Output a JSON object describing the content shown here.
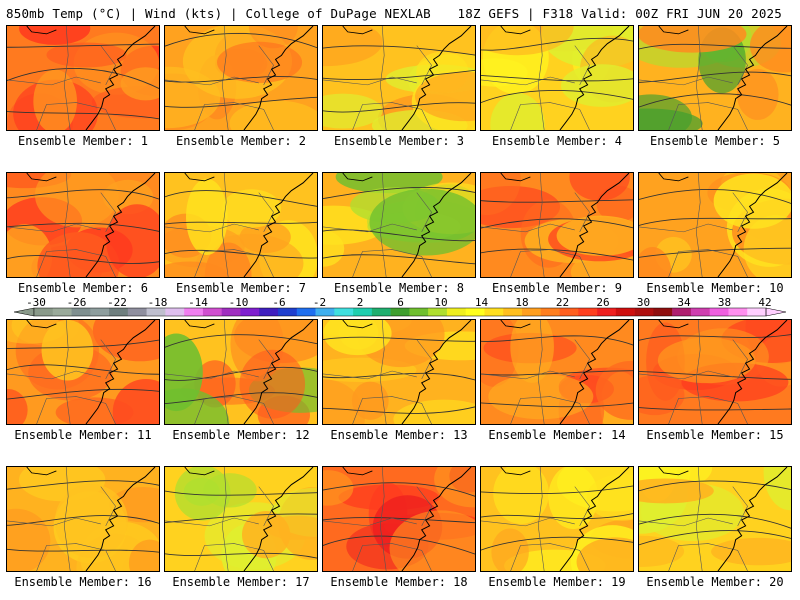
{
  "header": {
    "left_title": "850mb Temp (°C) | Wind (kts) | College of DuPage NEXLAB",
    "right_title": "18Z GEFS | F318 Valid: 00Z FRI JUN 20 2025"
  },
  "colorbar": {
    "tick_labels": [
      "-30",
      "-26",
      "-22",
      "-18",
      "-14",
      "-10",
      "-6",
      "-2",
      "2",
      "6",
      "10",
      "14",
      "18",
      "22",
      "26",
      "30",
      "34",
      "38",
      "42"
    ],
    "colors": [
      "#8a9a8a",
      "#9aaa9a",
      "#7f8f8f",
      "#8e9e9e",
      "#6f7f7f",
      "#8f8f9f",
      "#bfbfcf",
      "#dfbfef",
      "#f07ff0",
      "#d04fd0",
      "#a02fc0",
      "#7f1fcf",
      "#3f1fbf",
      "#1f3fcf",
      "#1f6fef",
      "#3fafef",
      "#3fdfdf",
      "#1fcfaf",
      "#1faf6f",
      "#3f9f2f",
      "#6fbf2f",
      "#afdf2f",
      "#efef1f",
      "#ffff1f",
      "#ffdf1f",
      "#ffbf1f",
      "#ff9f1f",
      "#ff7f1f",
      "#ff5f1f",
      "#ff3f1f",
      "#ef1f1f",
      "#cf0f0f",
      "#af0f0f",
      "#8f0f0f",
      "#af1f6f",
      "#cf3faf",
      "#ef5fdf",
      "#ff8fef",
      "#ffcfff"
    ]
  },
  "members": [
    {
      "label": "Ensemble Member: 1",
      "palette": [
        "#ff7a1f",
        "#ff5a1f",
        "#ff3a1f",
        "#ff9a1f"
      ]
    },
    {
      "label": "Ensemble Member: 2",
      "palette": [
        "#ffa21f",
        "#ff8a1f",
        "#ff6a1f",
        "#ffc21f"
      ]
    },
    {
      "label": "Ensemble Member: 3",
      "palette": [
        "#ffc21f",
        "#ffe31f",
        "#ff9a1f",
        "#dfef2f"
      ]
    },
    {
      "label": "Ensemble Member: 4",
      "palette": [
        "#ffd21f",
        "#fff21f",
        "#ffb21f",
        "#dfef2f"
      ]
    },
    {
      "label": "Ensemble Member: 5",
      "palette": [
        "#ffb21f",
        "#afdf2f",
        "#3f9f2f",
        "#ff8a1f"
      ]
    },
    {
      "label": "Ensemble Member: 6",
      "palette": [
        "#ff8a1f",
        "#ff5a1f",
        "#ff3a1f",
        "#ffa21f"
      ]
    },
    {
      "label": "Ensemble Member: 7",
      "palette": [
        "#ffc21f",
        "#ffa21f",
        "#ff8a1f",
        "#ffe31f"
      ]
    },
    {
      "label": "Ensemble Member: 8",
      "palette": [
        "#ffb21f",
        "#ffe31f",
        "#afdf2f",
        "#6fbf2f"
      ]
    },
    {
      "label": "Ensemble Member: 9",
      "palette": [
        "#ff8a1f",
        "#ff6a1f",
        "#ff4a1f",
        "#ffb21f"
      ]
    },
    {
      "label": "Ensemble Member: 10",
      "palette": [
        "#ffa21f",
        "#ffc21f",
        "#ff8a1f",
        "#ffe31f"
      ]
    },
    {
      "label": "Ensemble Member: 11",
      "palette": [
        "#ff9a1f",
        "#ff6a1f",
        "#ffc21f",
        "#ff4a1f"
      ]
    },
    {
      "label": "Ensemble Member: 12",
      "palette": [
        "#ffc21f",
        "#ff8a1f",
        "#ff5a1f",
        "#6fbf2f"
      ]
    },
    {
      "label": "Ensemble Member: 13",
      "palette": [
        "#ffb21f",
        "#ffd21f",
        "#ff9a1f",
        "#ffe31f"
      ]
    },
    {
      "label": "Ensemble Member: 14",
      "palette": [
        "#ff8a1f",
        "#ff6a1f",
        "#ff4a1f",
        "#ffb21f"
      ]
    },
    {
      "label": "Ensemble Member: 15",
      "palette": [
        "#ff7a1f",
        "#ff5a1f",
        "#ff3a1f",
        "#ff9a1f"
      ]
    },
    {
      "label": "Ensemble Member: 16",
      "palette": [
        "#ffb21f",
        "#ffd21f",
        "#ff9a1f",
        "#ffc21f"
      ]
    },
    {
      "label": "Ensemble Member: 17",
      "palette": [
        "#ffd21f",
        "#dfef2f",
        "#afdf2f",
        "#ffb21f"
      ]
    },
    {
      "label": "Ensemble Member: 18",
      "palette": [
        "#ff6a1f",
        "#ff3a1f",
        "#ef1f1f",
        "#ff9a1f"
      ]
    },
    {
      "label": "Ensemble Member: 19",
      "palette": [
        "#ffc21f",
        "#ffe31f",
        "#fff21f",
        "#ffa21f"
      ]
    },
    {
      "label": "Ensemble Member: 20",
      "palette": [
        "#ffd21f",
        "#fff21f",
        "#ffb21f",
        "#dfef2f"
      ]
    }
  ]
}
